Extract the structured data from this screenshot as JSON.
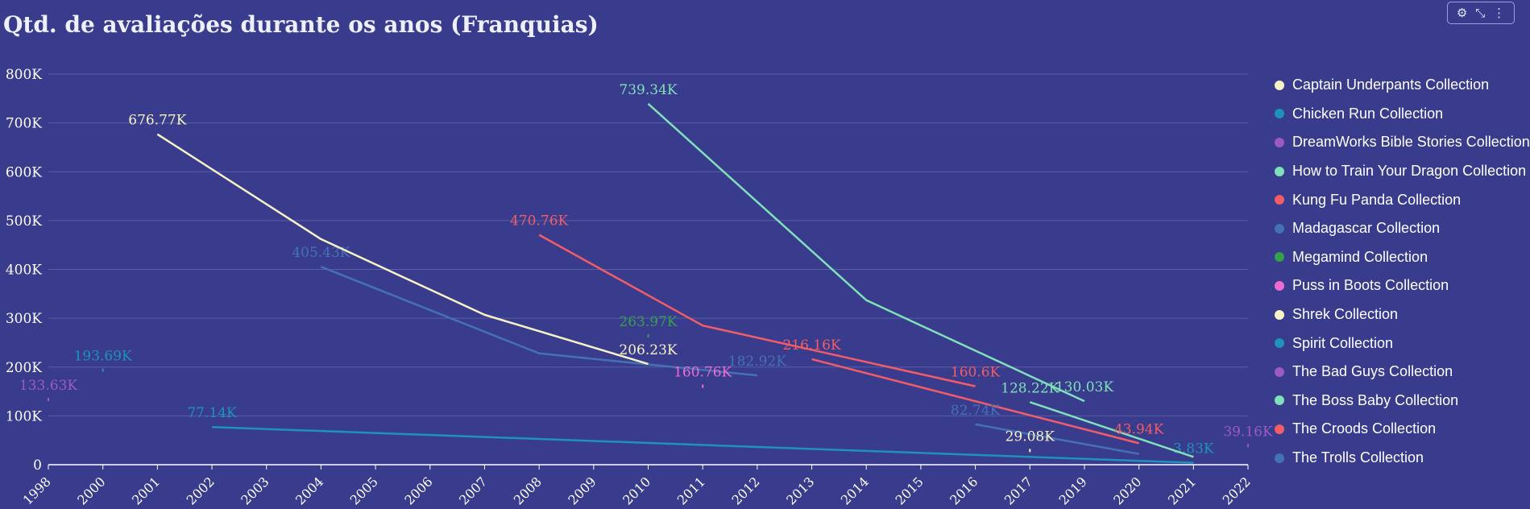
{
  "title": "Qtd. de avaliações durante os anos (Franquias)",
  "toolbar": {
    "icons": [
      "chart-settings-icon",
      "collapse-icon",
      "more-options-icon"
    ],
    "glyphs": [
      "⚙",
      "⤡",
      "⋮"
    ]
  },
  "chart_data": {
    "type": "line",
    "title": "Qtd. de avaliações durante os anos (Franquias)",
    "categories": [
      "1998",
      "2000",
      "2001",
      "2002",
      "2003",
      "2004",
      "2005",
      "2006",
      "2007",
      "2008",
      "2009",
      "2010",
      "2011",
      "2012",
      "2013",
      "2014",
      "2015",
      "2016",
      "2017",
      "2019",
      "2020",
      "2021",
      "2022"
    ],
    "yticks": [
      "0",
      "100K",
      "200K",
      "300K",
      "400K",
      "500K",
      "600K",
      "700K",
      "800K"
    ],
    "ylim": [
      0,
      800000
    ],
    "grid": true,
    "legend_position": "right",
    "series": [
      {
        "name": "Captain Underpants Collection",
        "color": "#f7f2c6",
        "points": []
      },
      {
        "name": "Chicken Run Collection",
        "color": "#1e92b8",
        "points": [
          [
            "2000",
            193690
          ]
        ],
        "labels": [
          "193.69K"
        ]
      },
      {
        "name": "DreamWorks Bible Stories Collection",
        "color": "#9c59c6",
        "points": [
          [
            "1998",
            133630
          ]
        ],
        "labels": [
          "133.63K"
        ]
      },
      {
        "name": "How to Train Your Dragon Collection",
        "color": "#7fe0b9",
        "points": [
          [
            "2010",
            739340
          ],
          [
            "2014",
            337000
          ],
          [
            "2019",
            130030
          ]
        ],
        "labels": [
          "739.34K",
          "",
          "130.03K"
        ]
      },
      {
        "name": "Kung Fu Panda Collection",
        "color": "#f25c66",
        "points": [
          [
            "2008",
            470760
          ],
          [
            "2011",
            285000
          ],
          [
            "2016",
            160600
          ]
        ],
        "labels": [
          "470.76K",
          "",
          "160.6K"
        ]
      },
      {
        "name": "Madagascar Collection",
        "color": "#4471b4",
        "points": [
          [
            "2004",
            405430
          ],
          [
            "2008",
            228000
          ],
          [
            "2012",
            182920
          ]
        ],
        "labels": [
          "405.43K",
          "",
          "182.92K"
        ]
      },
      {
        "name": "Megamind Collection",
        "color": "#34a04a",
        "points": [
          [
            "2010",
            263970
          ]
        ],
        "labels": [
          "263.97K"
        ]
      },
      {
        "name": "Puss in Boots Collection",
        "color": "#f06bd1",
        "points": [
          [
            "2011",
            160760
          ]
        ],
        "labels": [
          "160.76K"
        ]
      },
      {
        "name": "Shrek Collection",
        "color": "#f7f2c6",
        "points": [
          [
            "2001",
            676770
          ],
          [
            "2004",
            462000
          ],
          [
            "2007",
            307000
          ],
          [
            "2010",
            206230
          ]
        ],
        "labels": [
          "676.77K",
          "",
          "",
          "206.23K"
        ]
      },
      {
        "name": "Spirit Collection",
        "color": "#1e92b8",
        "points": [
          [
            "2002",
            77140
          ],
          [
            "2021",
            3830
          ]
        ],
        "labels": [
          "77.14K",
          "3.83K"
        ]
      },
      {
        "name": "The Bad Guys Collection",
        "color": "#9c59c6",
        "points": [
          [
            "2022",
            39160
          ]
        ],
        "labels": [
          "39.16K"
        ]
      },
      {
        "name": "The Boss Baby Collection",
        "color": "#7fe0b9",
        "points": [
          [
            "2017",
            128220
          ],
          [
            "2021",
            16000
          ]
        ],
        "labels": [
          "128.22K",
          ""
        ]
      },
      {
        "name": "The Croods Collection",
        "color": "#f25c66",
        "points": [
          [
            "2013",
            216160
          ],
          [
            "2020",
            43940
          ]
        ],
        "labels": [
          "216.16K",
          "43.94K"
        ]
      },
      {
        "name": "The Trolls Collection",
        "color": "#4471b4",
        "points": [
          [
            "2016",
            82740
          ],
          [
            "2020",
            22000
          ]
        ],
        "labels": [
          "82.74K",
          ""
        ]
      },
      {
        "name": "Captain Underpants Collection (2017)",
        "color": "#f7f2c6",
        "points": [
          [
            "2017",
            29080
          ]
        ],
        "labels": [
          "29.08K"
        ],
        "legend": false
      }
    ]
  },
  "legend": [
    {
      "label": "Captain Underpants Collection",
      "color": "#f7f2c6"
    },
    {
      "label": "Chicken Run Collection",
      "color": "#1e92b8"
    },
    {
      "label": "DreamWorks Bible Stories Collection",
      "color": "#9c59c6"
    },
    {
      "label": "How to Train Your Dragon Collection",
      "color": "#7fe0b9"
    },
    {
      "label": "Kung Fu Panda Collection",
      "color": "#f25c66"
    },
    {
      "label": "Madagascar Collection",
      "color": "#4471b4"
    },
    {
      "label": "Megamind Collection",
      "color": "#34a04a"
    },
    {
      "label": "Puss in Boots Collection",
      "color": "#f06bd1"
    },
    {
      "label": "Shrek Collection",
      "color": "#f7f2c6"
    },
    {
      "label": "Spirit Collection",
      "color": "#1e92b8"
    },
    {
      "label": "The Bad Guys Collection",
      "color": "#9c59c6"
    },
    {
      "label": "The Boss Baby Collection",
      "color": "#7fe0b9"
    },
    {
      "label": "The Croods Collection",
      "color": "#f25c66"
    },
    {
      "label": "The Trolls Collection",
      "color": "#4471b4"
    }
  ]
}
